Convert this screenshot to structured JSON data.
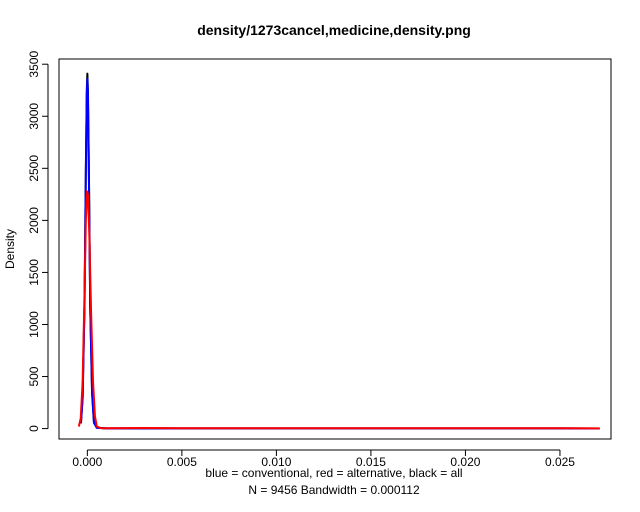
{
  "chart_data": {
    "type": "line",
    "title": "density/1273cancel,medicine,density.png",
    "ylabel": "Density",
    "xlabel_line1": "blue = conventional, red = alternative, black = all",
    "xlabel_line2": "N = 9456   Bandwidth = 0.000112",
    "xlim": [
      -0.0015,
      0.0277
    ],
    "ylim": [
      -100,
      3550
    ],
    "x_ticks": [
      0.0,
      0.005,
      0.01,
      0.015,
      0.02,
      0.025
    ],
    "x_tick_labels": [
      "0.000",
      "0.005",
      "0.010",
      "0.015",
      "0.020",
      "0.025"
    ],
    "y_ticks": [
      0,
      500,
      1000,
      1500,
      2000,
      2500,
      3000,
      3500
    ],
    "y_tick_labels": [
      "0",
      "500",
      "1000",
      "1500",
      "2000",
      "2500",
      "3000",
      "3500"
    ],
    "series": [
      {
        "color": "#000000",
        "x": [
          -0.00034,
          -0.00025,
          -0.00015,
          -8e-05,
          -3e-05,
          0.0,
          3e-05,
          8e-05,
          0.00015,
          0.00025,
          0.00035,
          0.0005,
          0.001,
          0.005,
          0.01,
          0.015,
          0.02,
          0.025,
          0.0271
        ],
        "y": [
          50,
          300,
          1200,
          2500,
          3250,
          3410,
          3250,
          2500,
          1200,
          350,
          60,
          8,
          2,
          2,
          2,
          2,
          2,
          2,
          1
        ]
      },
      {
        "color": "#0000ff",
        "x": [
          -0.00034,
          -0.00025,
          -0.00015,
          -8e-05,
          -3e-05,
          0.0,
          3e-05,
          8e-05,
          0.00015,
          0.00025,
          0.00035,
          0.0005,
          0.001,
          0.005,
          0.01,
          0.015,
          0.02,
          0.025,
          0.0271
        ],
        "y": [
          50,
          290,
          1180,
          2450,
          3200,
          3360,
          3200,
          2450,
          1180,
          330,
          55,
          8,
          2,
          2,
          2,
          2,
          2,
          2,
          1
        ]
      },
      {
        "color": "#ff0000",
        "x": [
          -0.00045,
          -0.00035,
          -0.00025,
          -0.00015,
          -8e-05,
          -2e-05,
          3e-05,
          0.0001,
          0.0002,
          0.0003,
          0.0004,
          0.0005,
          0.0007,
          0.001,
          0.003,
          0.005,
          0.01,
          0.015,
          0.02,
          0.025,
          0.0271
        ],
        "y": [
          20,
          100,
          450,
          1300,
          2000,
          2280,
          2250,
          1900,
          1100,
          450,
          120,
          20,
          5,
          3,
          6,
          3,
          3,
          3,
          3,
          3,
          2
        ]
      }
    ]
  }
}
